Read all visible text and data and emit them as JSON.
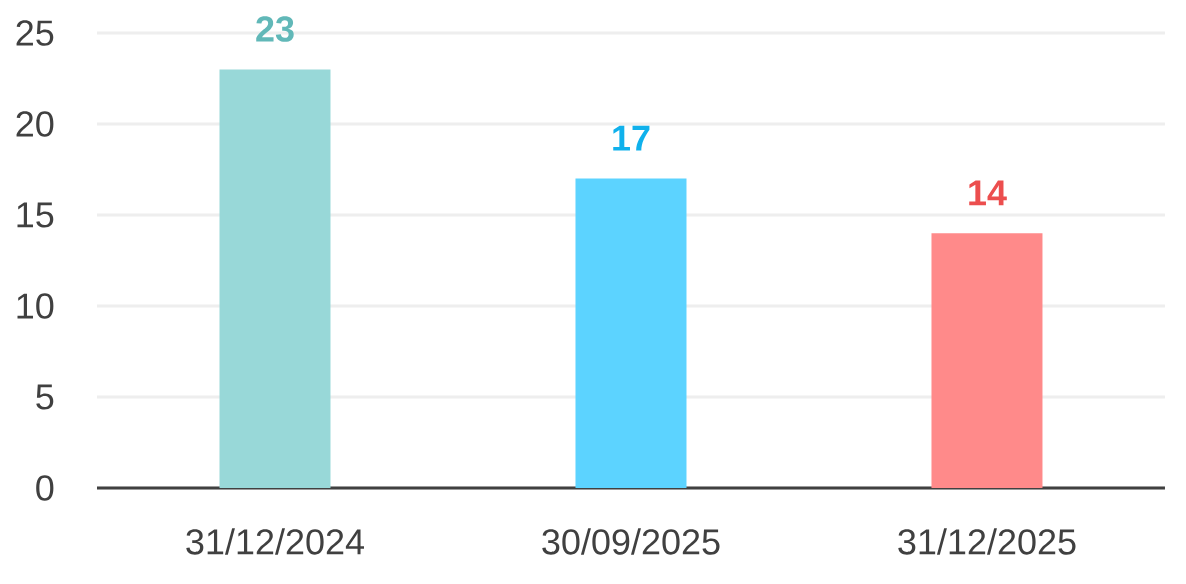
{
  "chart_data": {
    "type": "bar",
    "categories": [
      "31/12/2024",
      "30/09/2025",
      "31/12/2025"
    ],
    "values": [
      23,
      17,
      14
    ],
    "colors": [
      "#98d8d8",
      "#5cd3ff",
      "#ff8a8a"
    ],
    "ylim": [
      0,
      25
    ],
    "yticks": [
      0,
      5,
      10,
      15,
      20,
      25
    ],
    "grid": "y",
    "data_labels": true
  }
}
